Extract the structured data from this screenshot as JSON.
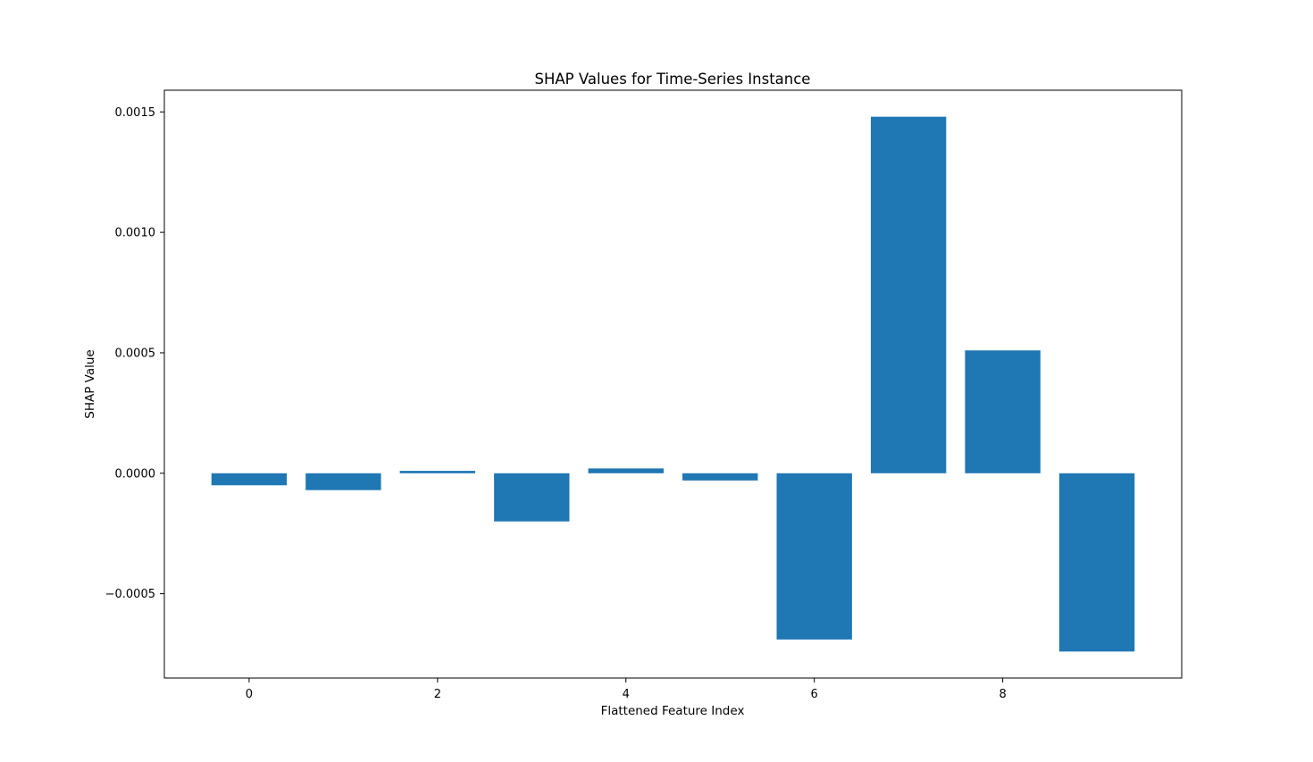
{
  "chart_data": {
    "type": "bar",
    "title": "SHAP Values for Time-Series Instance",
    "xlabel": "Flattened Feature Index",
    "ylabel": "SHAP Value",
    "categories": [
      0,
      1,
      2,
      3,
      4,
      5,
      6,
      7,
      8,
      9
    ],
    "values": [
      -5e-05,
      -7e-05,
      1e-05,
      -0.0002,
      2e-05,
      -3e-05,
      -0.00069,
      0.00148,
      0.00051,
      -0.00074
    ],
    "xlim": [
      -0.9,
      9.9
    ],
    "ylim": [
      -0.00085,
      0.00159
    ],
    "xticks": [
      {
        "value": 0,
        "label": "0"
      },
      {
        "value": 2,
        "label": "2"
      },
      {
        "value": 4,
        "label": "4"
      },
      {
        "value": 6,
        "label": "6"
      },
      {
        "value": 8,
        "label": "8"
      }
    ],
    "yticks": [
      {
        "value": -0.0005,
        "label": "−0.0005"
      },
      {
        "value": 0.0,
        "label": "0.0000"
      },
      {
        "value": 0.0005,
        "label": "0.0005"
      },
      {
        "value": 0.001,
        "label": "0.0010"
      },
      {
        "value": 0.0015,
        "label": "0.0015"
      }
    ],
    "bar_color": "#1f77b4",
    "grid": false,
    "legend": "none"
  }
}
